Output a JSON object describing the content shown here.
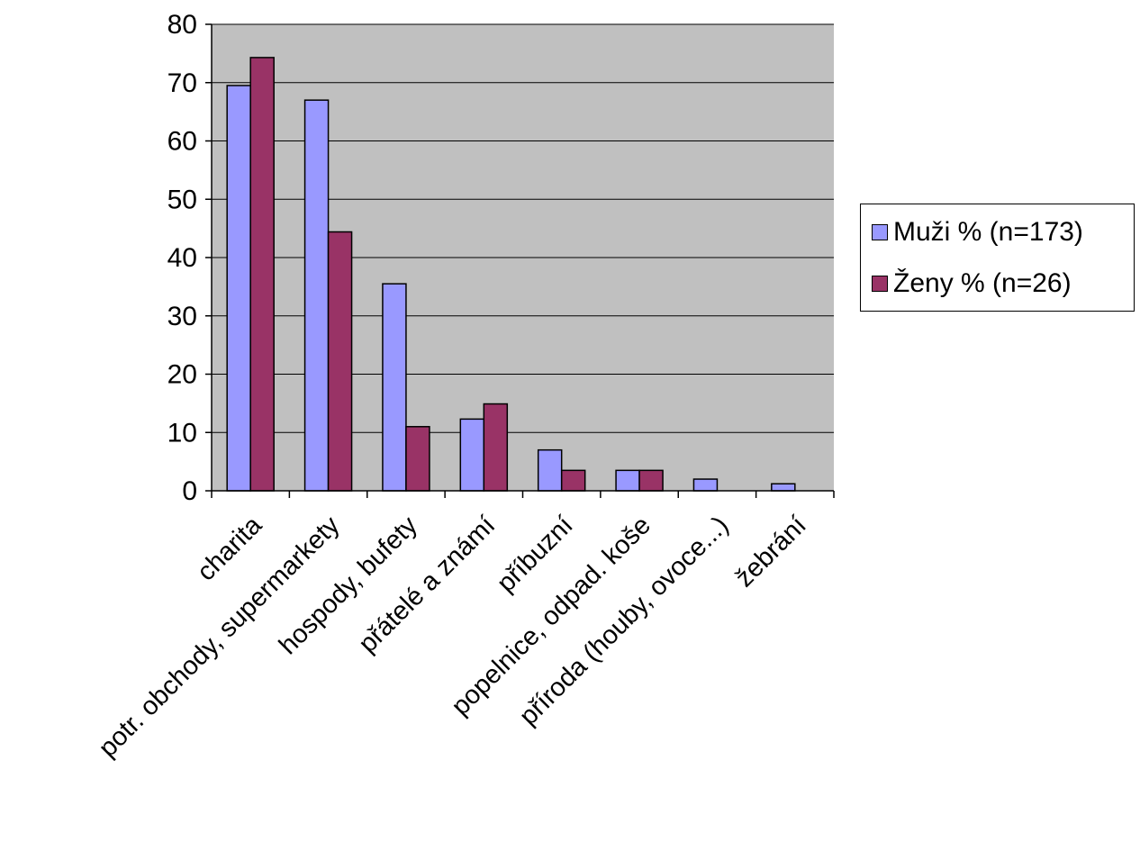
{
  "chart_data": {
    "type": "bar",
    "categories": [
      "charita",
      "potr. obchody, supermarkety",
      "hospody, bufety",
      "přátelé a známí",
      "příbuzní",
      "popelnice, odpad. koše",
      "příroda (houby, ovoce...)",
      "žebrání"
    ],
    "series": [
      {
        "name": "Muži % (n=173)",
        "color": "#9999ff",
        "values": [
          69.5,
          67,
          35.5,
          12.3,
          7,
          3.5,
          2,
          1.2
        ]
      },
      {
        "name": "Ženy % (n=26)",
        "color": "#993366",
        "values": [
          74.3,
          44.4,
          11,
          14.9,
          3.5,
          3.5,
          0,
          0
        ]
      }
    ],
    "ylim": [
      0,
      80
    ],
    "yticks": [
      0,
      10,
      20,
      30,
      40,
      50,
      60,
      70,
      80
    ],
    "grid": true,
    "plot_background": "#c0c0c0",
    "legend_position": "right"
  }
}
